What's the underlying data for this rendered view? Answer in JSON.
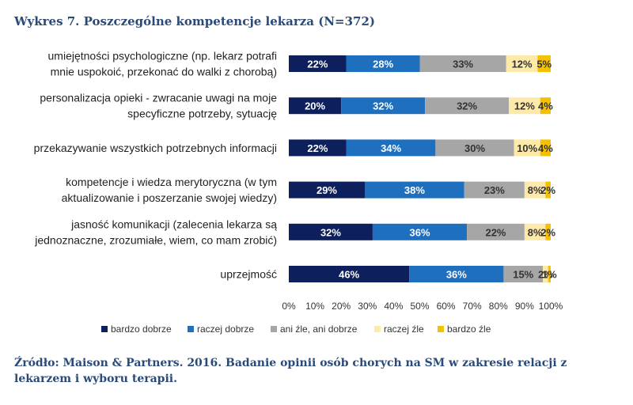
{
  "chart_data": {
    "type": "bar",
    "orientation": "horizontal",
    "stacked": true,
    "title": "Wykres 7. Poszczególne kompetencje lekarza (N=372)",
    "source": "Źródło: Maison & Partners. 2016. Badanie opinii osób chorych na SM w zakresie relacji z lekarzem i wyboru terapii.",
    "categories": [
      [
        "umiejętności psychologiczne (np. lekarz potrafi",
        "mnie uspokoić, przekonać do walki z chorobą)"
      ],
      [
        "personalizacja opieki - zwracanie uwagi na moje",
        "specyficzne potrzeby, sytuację"
      ],
      [
        "przekazywanie wszystkich potrzebnych informacji"
      ],
      [
        "kompetencje i wiedza merytoryczna (w tym",
        "aktualizowanie i poszerzanie swojej wiedzy)"
      ],
      [
        "jasność komunikacji (zalecenia lekarza są",
        "jednoznaczne, zrozumiałe, wiem, co mam zrobić)"
      ],
      [
        "uprzejmość"
      ]
    ],
    "series": [
      {
        "name": "bardzo dobrze",
        "color": "#0d1f5c",
        "label_color": "#ffffff",
        "values": [
          22,
          20,
          22,
          29,
          32,
          46
        ]
      },
      {
        "name": "raczej dobrze",
        "color": "#1f6fbf",
        "label_color": "#ffffff",
        "values": [
          28,
          32,
          34,
          38,
          36,
          36
        ]
      },
      {
        "name": "ani źle, ani dobrze",
        "color": "#a6a6a6",
        "label_color": "#333333",
        "values": [
          33,
          32,
          30,
          23,
          22,
          15
        ]
      },
      {
        "name": "raczej źle",
        "color": "#fde9a8",
        "label_color": "#333333",
        "values": [
          12,
          12,
          10,
          8,
          8,
          2
        ]
      },
      {
        "name": "bardzo źle",
        "color": "#f5c000",
        "label_color": "#333333",
        "values": [
          5,
          4,
          4,
          2,
          2,
          1
        ]
      }
    ],
    "x_ticks": [
      "0%",
      "10%",
      "20%",
      "30%",
      "40%",
      "50%",
      "60%",
      "70%",
      "80%",
      "90%",
      "100%"
    ],
    "xlim": [
      0,
      100
    ],
    "legend_position": "bottom",
    "grid": false
  }
}
